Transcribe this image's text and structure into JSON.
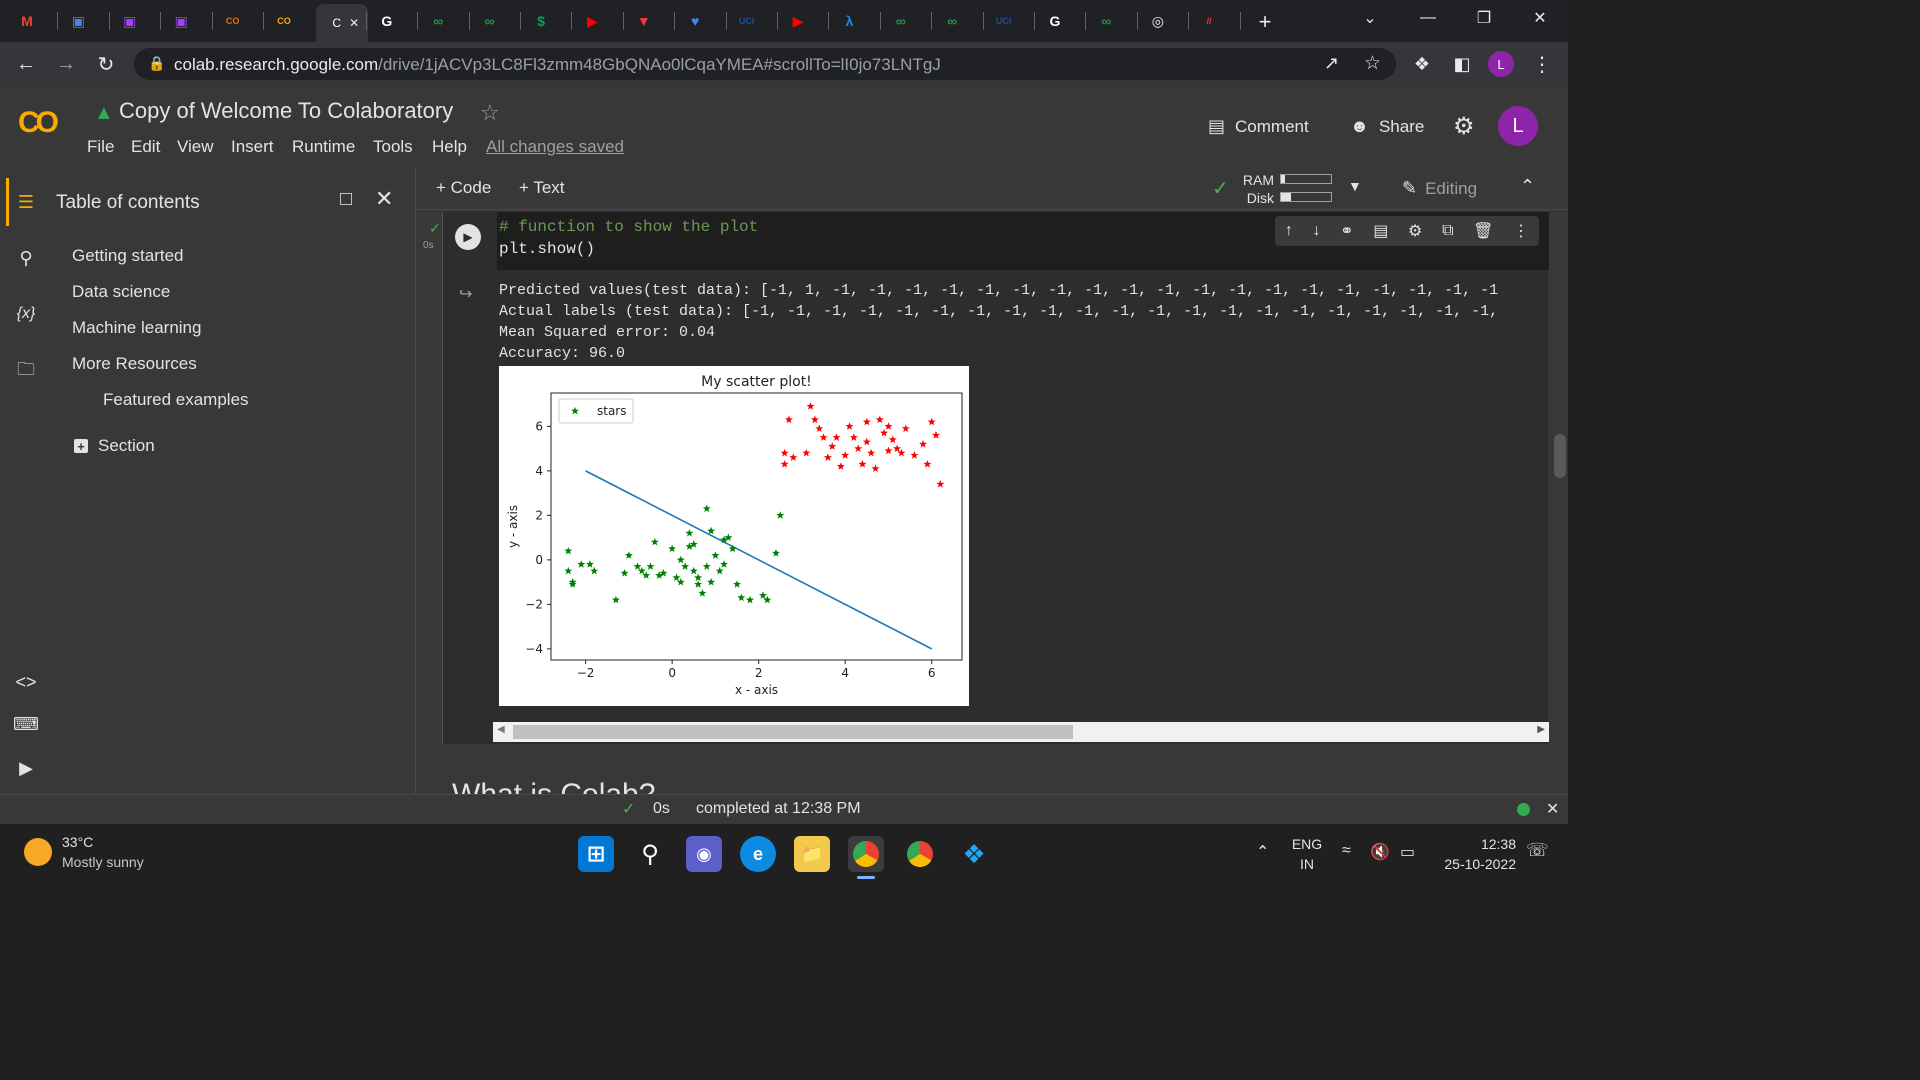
{
  "browser": {
    "tab_favicons": [
      {
        "label": "M",
        "color": "#ea4335"
      },
      {
        "label": "▣",
        "color": "#4285f4"
      },
      {
        "label": "▣",
        "color": "#a142f4"
      },
      {
        "label": "▣",
        "color": "#a142f4"
      },
      {
        "label": "CO",
        "color": "#e8710a"
      },
      {
        "label": "CO",
        "color": "#f9ab00"
      },
      {
        "label": "G",
        "color": "#ffffff"
      },
      {
        "label": "∞",
        "color": "#2f8d46"
      },
      {
        "label": "∞",
        "color": "#2f8d46"
      },
      {
        "label": "$",
        "color": "#0f9d58"
      },
      {
        "label": "▶",
        "color": "#ff0000"
      },
      {
        "label": "▼",
        "color": "#ff3333"
      },
      {
        "label": "♥",
        "color": "#4285f4"
      },
      {
        "label": "UCI",
        "color": "#1a4e9e"
      },
      {
        "label": "▶",
        "color": "#ff0000"
      },
      {
        "label": "λ",
        "color": "#1e88e5"
      },
      {
        "label": "∞",
        "color": "#2f8d46"
      },
      {
        "label": "∞",
        "color": "#2f8d46"
      },
      {
        "label": "UCI",
        "color": "#1a4e9e"
      },
      {
        "label": "G",
        "color": "#ffffff"
      },
      {
        "label": "∞",
        "color": "#2f8d46"
      },
      {
        "label": "◎",
        "color": "#f5f5f5"
      },
      {
        "label": "//",
        "color": "#e53935"
      }
    ],
    "active_tab_title": "C",
    "url_host": "colab.research.google.com",
    "url_path": "/drive/1jACVp3LC8Fl3zmm48GbQNAo0lCqaYMEA#scrollTo=lI0jo73LNTgJ",
    "profile_initial": "L"
  },
  "colab": {
    "title": "Copy of Welcome To Colaboratory",
    "menus": [
      "File",
      "Edit",
      "View",
      "Insert",
      "Runtime",
      "Tools",
      "Help"
    ],
    "save_status": "All changes saved",
    "comment_label": "Comment",
    "share_label": "Share",
    "user_initial": "L",
    "toolbar": {
      "code_label": "+ Code",
      "text_label": "+ Text",
      "ram_label": "RAM",
      "disk_label": "Disk",
      "editing_label": "Editing"
    }
  },
  "toc": {
    "title": "Table of contents",
    "items": [
      {
        "label": "Getting started"
      },
      {
        "label": "Data science"
      },
      {
        "label": "Machine learning"
      },
      {
        "label": "More Resources"
      },
      {
        "label": "Featured examples"
      }
    ],
    "section_label": "Section"
  },
  "cell": {
    "exec_time": "0s",
    "code_lines": [
      "# function to show the plot",
      "plt.show()"
    ],
    "output_lines": [
      "Predicted values(test data): [-1, 1, -1, -1, -1, -1, -1, -1, -1, -1, -1, -1, -1, -1, -1, -1, -1, -1, -1, -1, -1",
      "Actual labels (test data): [-1, -1, -1, -1, -1, -1, -1, -1, -1, -1, -1, -1, -1, -1, -1, -1, -1, -1, -1, -1, -1,",
      "Mean Squared error: 0.04",
      "Accuracy: 96.0"
    ]
  },
  "chart_data": {
    "type": "scatter",
    "title": "My scatter plot!",
    "xlabel": "x - axis",
    "ylabel": "y - axis",
    "xlim": [
      -2.8,
      6.7
    ],
    "ylim": [
      -4.5,
      7.5
    ],
    "xticks": [
      -2,
      0,
      2,
      4,
      6
    ],
    "yticks": [
      -4,
      -2,
      0,
      2,
      4,
      6
    ],
    "legend": {
      "label": "stars",
      "placement": "top-left"
    },
    "series": [
      {
        "name": "stars",
        "color": "#008000",
        "marker": "star",
        "points": [
          [
            -2.4,
            0.4
          ],
          [
            -2.3,
            -1.0
          ],
          [
            -2.3,
            -1.1
          ],
          [
            -2.4,
            -0.5
          ],
          [
            -2.1,
            -0.2
          ],
          [
            -1.9,
            -0.2
          ],
          [
            -1.8,
            -0.5
          ],
          [
            -1.3,
            -1.8
          ],
          [
            -1.1,
            -0.6
          ],
          [
            -1.0,
            0.2
          ],
          [
            -0.8,
            -0.3
          ],
          [
            -0.7,
            -0.5
          ],
          [
            -0.6,
            -0.7
          ],
          [
            -0.5,
            -0.3
          ],
          [
            -0.4,
            0.8
          ],
          [
            -0.3,
            -0.7
          ],
          [
            -0.2,
            -0.6
          ],
          [
            0.0,
            0.5
          ],
          [
            0.1,
            -0.8
          ],
          [
            0.2,
            0.0
          ],
          [
            0.2,
            -1.0
          ],
          [
            0.3,
            -0.3
          ],
          [
            0.4,
            1.2
          ],
          [
            0.4,
            0.6
          ],
          [
            0.5,
            0.7
          ],
          [
            0.5,
            -0.5
          ],
          [
            0.6,
            -0.8
          ],
          [
            0.6,
            -1.1
          ],
          [
            0.7,
            -1.5
          ],
          [
            0.8,
            -0.3
          ],
          [
            0.9,
            1.3
          ],
          [
            0.9,
            -1.0
          ],
          [
            1.0,
            0.2
          ],
          [
            1.1,
            -0.5
          ],
          [
            1.2,
            -0.2
          ],
          [
            1.3,
            1.0
          ],
          [
            1.4,
            0.5
          ],
          [
            1.5,
            -1.1
          ],
          [
            1.6,
            -1.7
          ],
          [
            1.8,
            -1.8
          ],
          [
            2.1,
            -1.6
          ],
          [
            2.2,
            -1.8
          ],
          [
            2.4,
            0.3
          ],
          [
            2.5,
            2.0
          ],
          [
            0.8,
            2.3
          ],
          [
            1.2,
            0.9
          ]
        ]
      },
      {
        "name": "",
        "color": "#ff0000",
        "marker": "star",
        "points": [
          [
            2.6,
            4.8
          ],
          [
            2.6,
            4.3
          ],
          [
            2.7,
            6.3
          ],
          [
            2.8,
            4.6
          ],
          [
            3.1,
            4.8
          ],
          [
            3.3,
            6.3
          ],
          [
            3.4,
            5.9
          ],
          [
            3.6,
            4.6
          ],
          [
            3.7,
            5.1
          ],
          [
            3.8,
            5.5
          ],
          [
            3.9,
            4.2
          ],
          [
            4.0,
            4.7
          ],
          [
            4.1,
            6.0
          ],
          [
            4.2,
            5.5
          ],
          [
            4.3,
            5.0
          ],
          [
            4.4,
            4.3
          ],
          [
            4.5,
            5.3
          ],
          [
            4.6,
            4.8
          ],
          [
            4.7,
            4.1
          ],
          [
            4.8,
            6.3
          ],
          [
            4.9,
            5.7
          ],
          [
            5.0,
            4.9
          ],
          [
            5.1,
            5.4
          ],
          [
            5.2,
            5.0
          ],
          [
            5.3,
            4.8
          ],
          [
            5.4,
            5.9
          ],
          [
            5.6,
            4.7
          ],
          [
            5.8,
            5.2
          ],
          [
            5.9,
            4.3
          ],
          [
            6.0,
            6.2
          ],
          [
            6.1,
            5.6
          ],
          [
            6.2,
            3.4
          ],
          [
            3.2,
            6.9
          ],
          [
            3.5,
            5.5
          ],
          [
            4.5,
            6.2
          ],
          [
            5.0,
            6.0
          ]
        ]
      }
    ],
    "lines": [
      {
        "color": "#1f77b4",
        "points": [
          [
            -2.0,
            4.0
          ],
          [
            6.0,
            -4.0
          ]
        ]
      }
    ]
  },
  "statusbar": {
    "time": "0s",
    "message": "completed at 12:38 PM"
  },
  "taskbar": {
    "temperature": "33°C",
    "weather": "Mostly sunny",
    "lang_top": "ENG",
    "lang_bottom": "IN",
    "clock": "12:38",
    "date": "25-10-2022"
  },
  "snippet_heading": "What is Colab?"
}
